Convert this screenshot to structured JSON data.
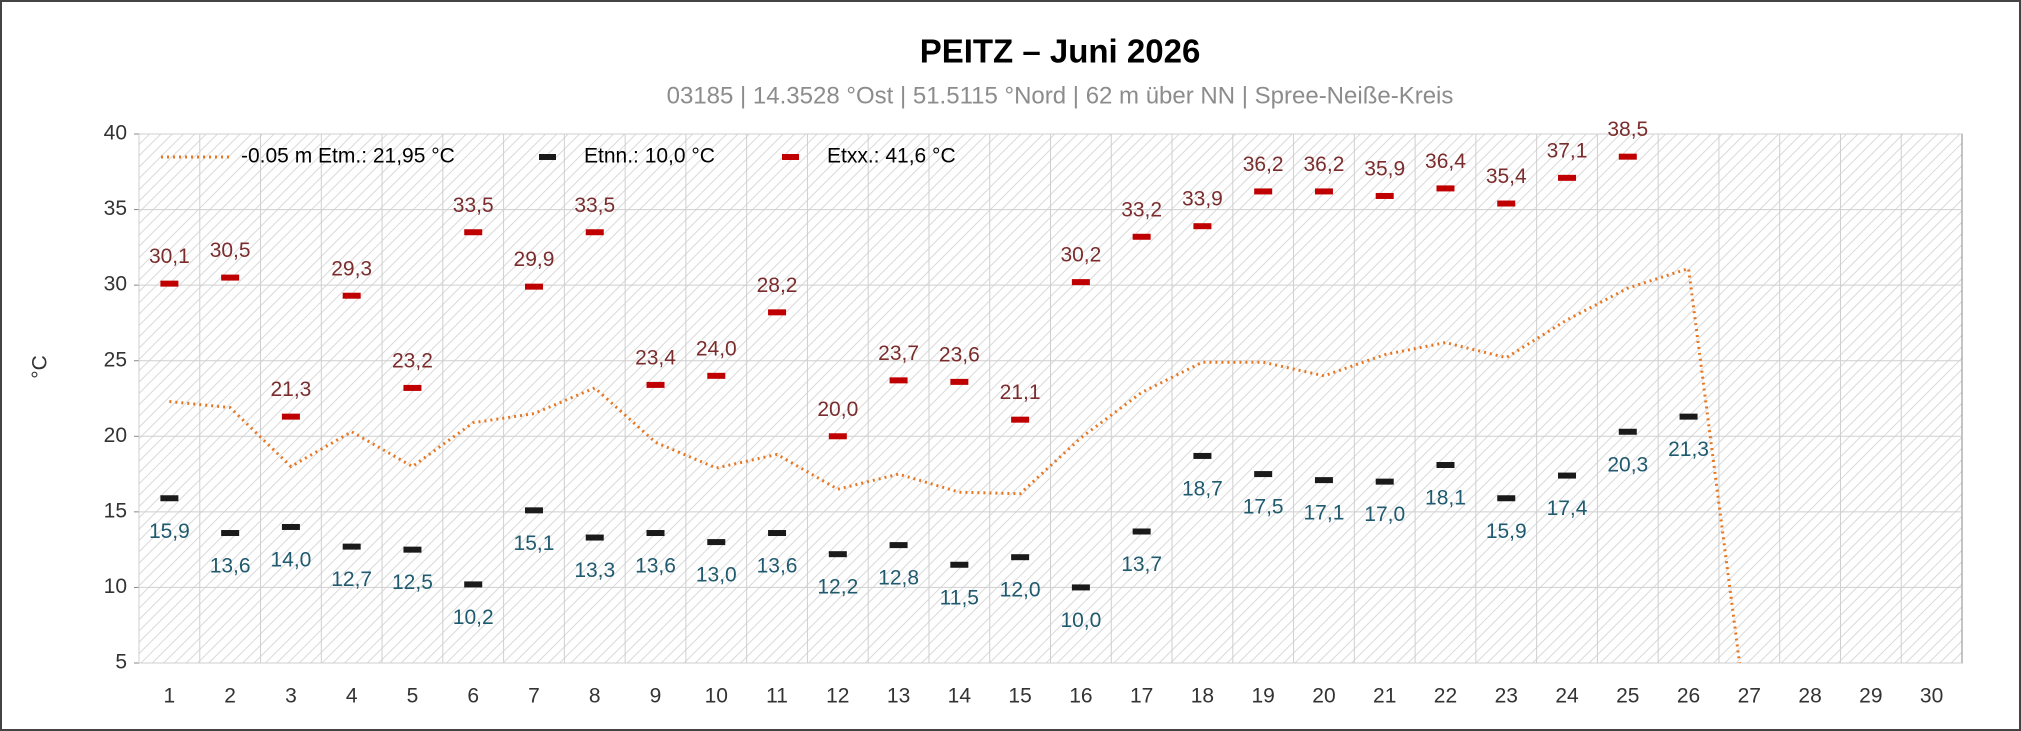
{
  "chart_data": {
    "type": "line",
    "title": "PEITZ  –  Juni 2026",
    "subtitle": "03185  |  14.3528 °Ost  |  51.5115 °Nord  |  62 m über NN  |  Spree-Neiße-Kreis",
    "y_label": "°C",
    "categories": [
      "1",
      "2",
      "3",
      "4",
      "5",
      "6",
      "7",
      "8",
      "9",
      "10",
      "11",
      "12",
      "13",
      "14",
      "15",
      "16",
      "17",
      "18",
      "19",
      "20",
      "21",
      "22",
      "23",
      "24",
      "25",
      "26",
      "27",
      "28",
      "29",
      "30"
    ],
    "ylim": [
      5,
      40
    ],
    "yticks": [
      5,
      10,
      15,
      20,
      25,
      30,
      35,
      40
    ],
    "grid": true,
    "legend": "upper left",
    "series": [
      {
        "name": "-0.05 m Etm.: 21,95 °C",
        "color": "#e87722",
        "mark": "dotted-line",
        "values": [
          22.3,
          21.9,
          18.0,
          20.3,
          18.0,
          20.9,
          21.5,
          23.2,
          19.6,
          17.9,
          18.8,
          16.5,
          17.5,
          16.3,
          16.2,
          19.9,
          22.9,
          24.9,
          24.9,
          24.0,
          25.4,
          26.2,
          25.2,
          27.7,
          29.8,
          31.1,
          0,
          null,
          null,
          null
        ]
      },
      {
        "name": "Etnn.: 10,0 °C",
        "color": "#1a1a1a",
        "label_color": "#1f5a6e",
        "mark": "dash",
        "label_position": "below",
        "values": [
          15.9,
          13.6,
          14.0,
          12.7,
          12.5,
          10.2,
          15.1,
          13.3,
          13.6,
          13.0,
          13.6,
          12.2,
          12.8,
          11.5,
          12.0,
          10.0,
          13.7,
          18.7,
          17.5,
          17.1,
          17.0,
          18.1,
          15.9,
          17.4,
          20.3,
          21.3,
          null,
          null,
          null,
          null
        ],
        "value_labels": [
          "15,9",
          "13,6",
          "14,0",
          "12,7",
          "12,5",
          "10,2",
          "15,1",
          "13,3",
          "13,6",
          "13,0",
          "13,6",
          "12,2",
          "12,8",
          "11,5",
          "12,0",
          "10,0",
          "13,7",
          "18,7",
          "17,5",
          "17,1",
          "17,0",
          "18,1",
          "15,9",
          "17,4",
          "20,3",
          "21,3",
          null,
          null,
          null,
          null
        ]
      },
      {
        "name": "Etxx.: 41,6 °C",
        "color": "#c00000",
        "label_color": "#7b2c2c",
        "mark": "dash",
        "label_position": "above",
        "values": [
          30.1,
          30.5,
          21.3,
          29.3,
          23.2,
          33.5,
          29.9,
          33.5,
          23.4,
          24.0,
          28.2,
          20.0,
          23.7,
          23.6,
          21.1,
          30.2,
          33.2,
          33.9,
          36.2,
          36.2,
          35.9,
          36.4,
          35.4,
          37.1,
          38.5,
          null,
          null,
          null,
          null,
          null
        ],
        "value_labels": [
          "30,1",
          "30,5",
          "21,3",
          "29,3",
          "23,2",
          "33,5",
          "29,9",
          "33,5",
          "23,4",
          "24,0",
          "28,2",
          "20,0",
          "23,7",
          "23,6",
          "21,1",
          "30,2",
          "33,2",
          "33,9",
          "36,2",
          "36,2",
          "35,9",
          "36,4",
          "35,4",
          "37,1",
          "38,5",
          null,
          null,
          null,
          null,
          null
        ]
      }
    ]
  }
}
